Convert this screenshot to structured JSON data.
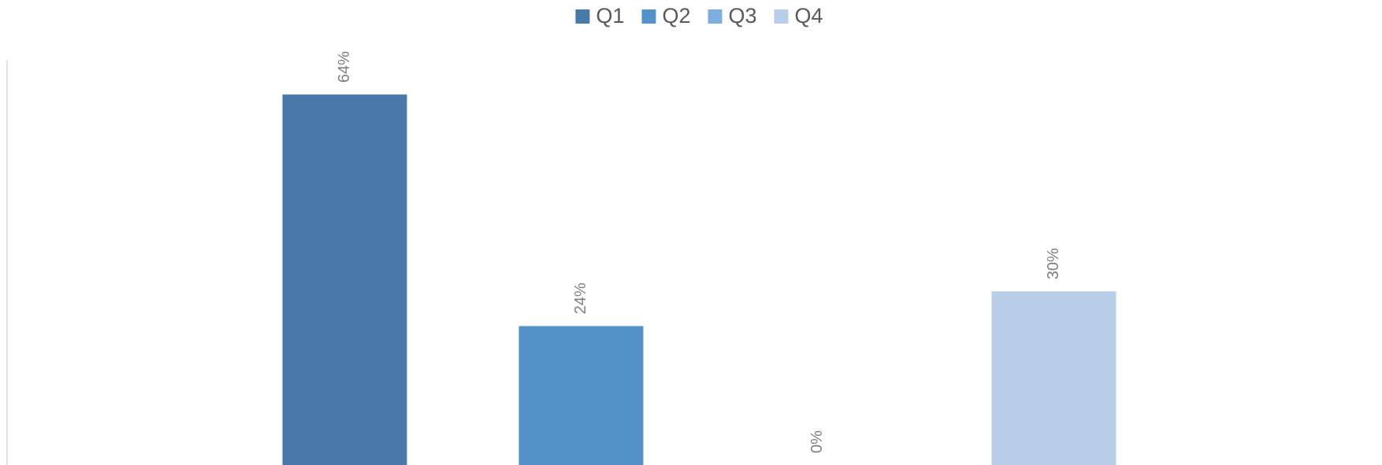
{
  "chart_data": {
    "type": "bar",
    "categories": [
      null
    ],
    "series": [
      {
        "name": "Q1",
        "color": "#4879a9",
        "values": [
          64
        ],
        "value_labels": [
          "64%"
        ]
      },
      {
        "name": "Q2",
        "color": "#5592c8",
        "values": [
          24
        ],
        "value_labels": [
          "24%"
        ]
      },
      {
        "name": "Q3",
        "color": "#7eaee0",
        "values": [
          0
        ],
        "value_labels": [
          "0%"
        ]
      },
      {
        "name": "Q4",
        "color": "#b8cde8",
        "values": [
          30
        ],
        "value_labels": [
          "30%"
        ]
      }
    ],
    "ylim": [
      0,
      70
    ],
    "legend": "top"
  }
}
